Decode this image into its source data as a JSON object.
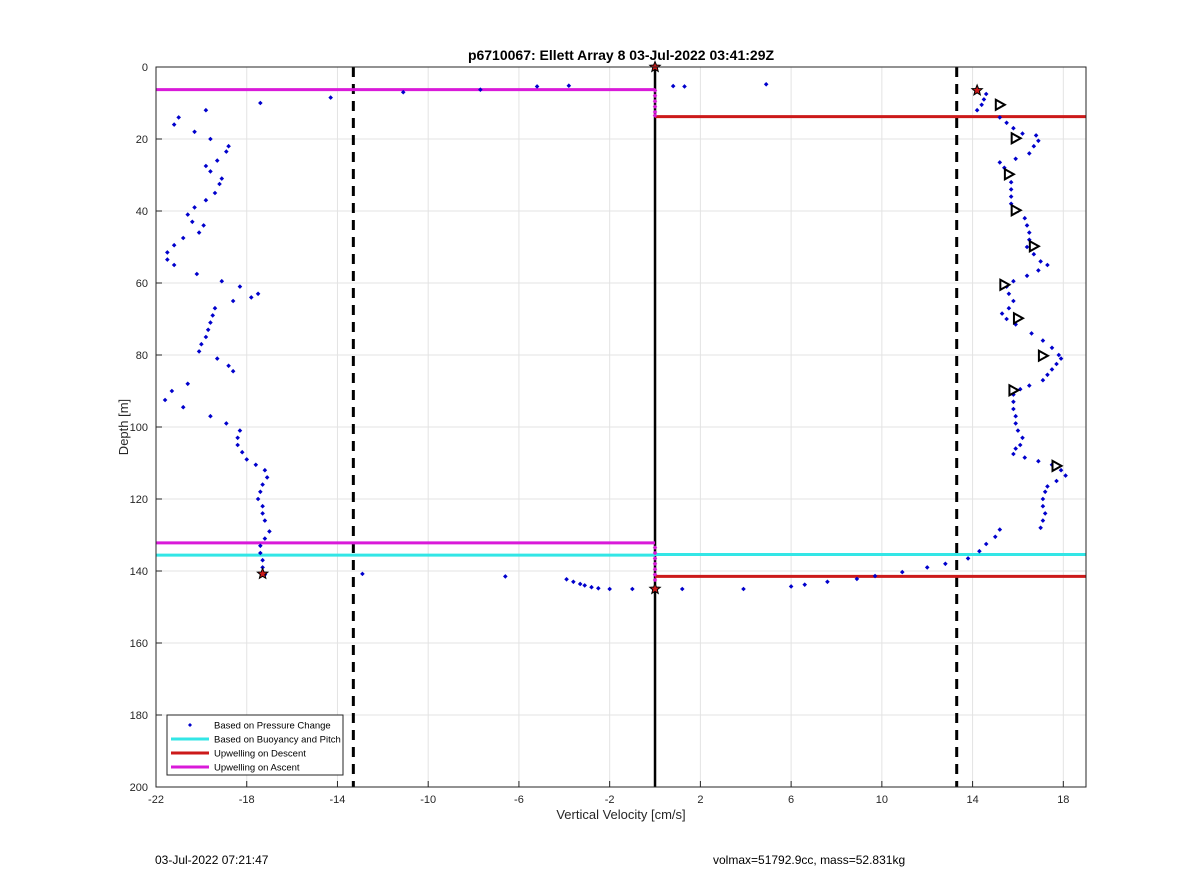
{
  "chart_data": {
    "type": "scatter",
    "title": "p6710067: Ellett Array 8 03-Jul-2022 03:41:29Z",
    "xlabel": "Vertical Velocity [cm/s]",
    "ylabel": "Depth [m]",
    "xlim": [
      -22,
      19
    ],
    "ylim": [
      0,
      200
    ],
    "y_reversed": true,
    "grid": true,
    "xticks": [
      -22,
      -18,
      -14,
      -10,
      -6,
      -2,
      2,
      6,
      10,
      14,
      18
    ],
    "yticks": [
      0,
      20,
      40,
      60,
      80,
      100,
      120,
      140,
      160,
      180,
      200
    ],
    "legend_position": "bottom-left",
    "legend": [
      {
        "label": "Based on Pressure Change",
        "style": "dot",
        "color": "#0000cc"
      },
      {
        "label": "Based on Buoyancy and Pitch",
        "style": "line",
        "color": "#33e6e6"
      },
      {
        "label": "Upwelling on Descent",
        "style": "line",
        "color": "#cc1a1a"
      },
      {
        "label": "Upwelling on Ascent",
        "style": "line",
        "color": "#d91ad9"
      }
    ],
    "pressure_change_points": {
      "descent": [
        [
          -17.4,
          10
        ],
        [
          -19.8,
          12
        ],
        [
          -21.0,
          14
        ],
        [
          -21.2,
          16
        ],
        [
          -20.3,
          18
        ],
        [
          -19.6,
          20
        ],
        [
          -18.8,
          22
        ],
        [
          -18.9,
          23.5
        ],
        [
          -19.3,
          26
        ],
        [
          -19.8,
          27.5
        ],
        [
          -19.6,
          29
        ],
        [
          -19.1,
          31
        ],
        [
          -19.2,
          32.5
        ],
        [
          -19.4,
          35
        ],
        [
          -19.8,
          37
        ],
        [
          -20.3,
          39
        ],
        [
          -20.6,
          41
        ],
        [
          -20.4,
          43
        ],
        [
          -19.9,
          44
        ],
        [
          -20.1,
          46
        ],
        [
          -20.8,
          47.5
        ],
        [
          -21.2,
          49.5
        ],
        [
          -21.5,
          51.5
        ],
        [
          -21.5,
          53.5
        ],
        [
          -21.2,
          55
        ],
        [
          -20.2,
          57.5
        ],
        [
          -19.1,
          59.5
        ],
        [
          -18.3,
          61
        ],
        [
          -17.5,
          63
        ],
        [
          -17.8,
          64
        ],
        [
          -18.6,
          65
        ],
        [
          -19.4,
          67
        ],
        [
          -19.5,
          69
        ],
        [
          -19.6,
          71
        ],
        [
          -19.7,
          73
        ],
        [
          -19.8,
          75
        ],
        [
          -20.0,
          77
        ],
        [
          -20.1,
          79
        ],
        [
          -19.3,
          81
        ],
        [
          -18.8,
          83
        ],
        [
          -18.6,
          84.5
        ],
        [
          -20.6,
          88
        ],
        [
          -21.3,
          90
        ],
        [
          -21.6,
          92.5
        ],
        [
          -20.8,
          94.5
        ],
        [
          -19.6,
          97
        ],
        [
          -18.9,
          99
        ],
        [
          -18.3,
          101
        ],
        [
          -18.4,
          103
        ],
        [
          -18.4,
          105
        ],
        [
          -18.2,
          107
        ],
        [
          -18.0,
          109
        ],
        [
          -17.6,
          110.5
        ],
        [
          -17.2,
          112
        ],
        [
          -17.1,
          114
        ],
        [
          -17.3,
          116
        ],
        [
          -17.4,
          118
        ],
        [
          -17.5,
          120
        ],
        [
          -17.3,
          122
        ],
        [
          -17.3,
          124
        ],
        [
          -17.2,
          126
        ],
        [
          -17.0,
          129
        ],
        [
          -17.2,
          131
        ],
        [
          -17.4,
          133
        ],
        [
          -17.4,
          135
        ],
        [
          -17.3,
          137
        ],
        [
          -17.3,
          139
        ],
        [
          -17.2,
          141
        ]
      ],
      "near_zero": [
        [
          -14.3,
          8.5
        ],
        [
          -11.1,
          7
        ],
        [
          -7.7,
          6.3
        ],
        [
          -5.2,
          5.4
        ],
        [
          -3.8,
          5.2
        ],
        [
          0.8,
          5.3
        ],
        [
          1.3,
          5.4
        ],
        [
          4.9,
          4.8
        ],
        [
          -12.9,
          140.8
        ],
        [
          -6.6,
          141.5
        ],
        [
          -3.9,
          142.3
        ],
        [
          -3.6,
          143
        ],
        [
          -3.3,
          143.6
        ],
        [
          -3.1,
          144
        ],
        [
          -2.8,
          144.5
        ],
        [
          -2.5,
          144.8
        ],
        [
          -2.0,
          145
        ],
        [
          -1.0,
          145
        ],
        [
          1.2,
          145
        ],
        [
          3.9,
          145
        ],
        [
          6.0,
          144.3
        ],
        [
          6.6,
          143.8
        ],
        [
          7.6,
          143
        ],
        [
          8.9,
          142.2
        ],
        [
          9.7,
          141.4
        ],
        [
          10.9,
          140.3
        ],
        [
          12.0,
          139
        ],
        [
          12.8,
          138
        ],
        [
          13.8,
          136.5
        ],
        [
          14.3,
          134.5
        ],
        [
          14.6,
          132.5
        ],
        [
          15.0,
          130.5
        ],
        [
          15.2,
          128.5
        ]
      ],
      "ascent": [
        [
          14.2,
          6.5
        ],
        [
          14.6,
          7.5
        ],
        [
          14.5,
          9
        ],
        [
          14.4,
          10.5
        ],
        [
          14.2,
          12
        ],
        [
          15.2,
          14
        ],
        [
          15.5,
          15.5
        ],
        [
          15.8,
          17
        ],
        [
          16.2,
          18.5
        ],
        [
          16.8,
          19
        ],
        [
          16.9,
          20.5
        ],
        [
          16.7,
          22
        ],
        [
          16.5,
          24
        ],
        [
          15.9,
          25.5
        ],
        [
          15.2,
          26.5
        ],
        [
          15.4,
          28
        ],
        [
          15.6,
          30
        ],
        [
          15.7,
          32
        ],
        [
          15.7,
          34
        ],
        [
          15.7,
          36
        ],
        [
          15.7,
          38
        ],
        [
          16.0,
          40
        ],
        [
          16.3,
          42
        ],
        [
          16.4,
          44
        ],
        [
          16.5,
          46
        ],
        [
          16.5,
          48
        ],
        [
          16.4,
          50
        ],
        [
          16.7,
          52
        ],
        [
          17.0,
          54
        ],
        [
          17.3,
          55
        ],
        [
          16.9,
          56.5
        ],
        [
          16.4,
          58
        ],
        [
          15.8,
          59.5
        ],
        [
          15.5,
          61
        ],
        [
          15.6,
          63
        ],
        [
          15.8,
          65
        ],
        [
          15.6,
          67
        ],
        [
          15.3,
          68.5
        ],
        [
          15.5,
          70
        ],
        [
          15.9,
          71.5
        ],
        [
          16.6,
          74
        ],
        [
          17.1,
          76
        ],
        [
          17.5,
          78
        ],
        [
          17.8,
          80
        ],
        [
          17.9,
          81
        ],
        [
          17.7,
          82.5
        ],
        [
          17.5,
          84
        ],
        [
          17.3,
          85.5
        ],
        [
          17.1,
          87
        ],
        [
          16.5,
          88.5
        ],
        [
          16.1,
          89.5
        ],
        [
          15.8,
          91
        ],
        [
          15.8,
          93
        ],
        [
          15.8,
          95
        ],
        [
          15.9,
          97
        ],
        [
          15.9,
          99
        ],
        [
          16.0,
          101
        ],
        [
          16.2,
          103
        ],
        [
          16.1,
          105
        ],
        [
          15.9,
          106
        ],
        [
          15.8,
          107.5
        ],
        [
          16.3,
          108.5
        ],
        [
          16.9,
          109.5
        ],
        [
          17.5,
          110.5
        ],
        [
          17.9,
          112
        ],
        [
          18.1,
          113.5
        ],
        [
          17.7,
          115
        ],
        [
          17.3,
          116.5
        ],
        [
          17.2,
          118
        ],
        [
          17.1,
          120
        ],
        [
          17.1,
          122
        ],
        [
          17.2,
          124
        ],
        [
          17.1,
          126
        ],
        [
          17.0,
          128
        ]
      ],
      "zero_line": [
        [
          0,
          6.5
        ],
        [
          0,
          8
        ],
        [
          0,
          9.5
        ],
        [
          0,
          11
        ],
        [
          0,
          12.5
        ],
        [
          0,
          13.5
        ],
        [
          0,
          133.5
        ],
        [
          0,
          135
        ],
        [
          0,
          136.5
        ],
        [
          0,
          138
        ],
        [
          0,
          139.5
        ],
        [
          0,
          141
        ],
        [
          0,
          142.5
        ]
      ]
    },
    "dashed_reference_lines_x": [
      -13.3,
      13.3
    ],
    "zero_line_x": 0,
    "buoyancy_pitch_lines": [
      {
        "x": [
          -22,
          0
        ],
        "y": 135.6
      },
      {
        "x": [
          0,
          19
        ],
        "y": 135.4
      }
    ],
    "upwelling_descent_lines": [
      {
        "x": [
          0,
          19
        ],
        "y": 13.8
      },
      {
        "x": [
          0,
          19
        ],
        "y": 141.5
      }
    ],
    "upwelling_ascent_lines": [
      {
        "x": [
          -22,
          0
        ],
        "y": 6.3
      },
      {
        "x": [
          -22,
          0
        ],
        "y": 132.2
      }
    ],
    "triangle_markers": [
      [
        15.2,
        10.5
      ],
      [
        15.9,
        19.8
      ],
      [
        15.6,
        29.8
      ],
      [
        15.9,
        39.8
      ],
      [
        16.7,
        49.8
      ],
      [
        15.4,
        60.5
      ],
      [
        16.0,
        69.8
      ],
      [
        17.1,
        80.2
      ],
      [
        15.8,
        89.8
      ],
      [
        17.7,
        110.8
      ]
    ],
    "star_markers": [
      [
        14.2,
        6.5
      ],
      [
        -17.3,
        140.8
      ],
      [
        0,
        145
      ],
      [
        0,
        0
      ]
    ]
  },
  "colors": {
    "points": "#0000cc",
    "buoyancy": "#33e6e6",
    "descent": "#cc1a1a",
    "ascent": "#d91ad9",
    "grid": "#e3e3e3",
    "axis": "#262626"
  },
  "footer": {
    "timestamp": "03-Jul-2022 07:21:47",
    "mass_info": "volmax=51792.9cc, mass=52.831kg"
  }
}
